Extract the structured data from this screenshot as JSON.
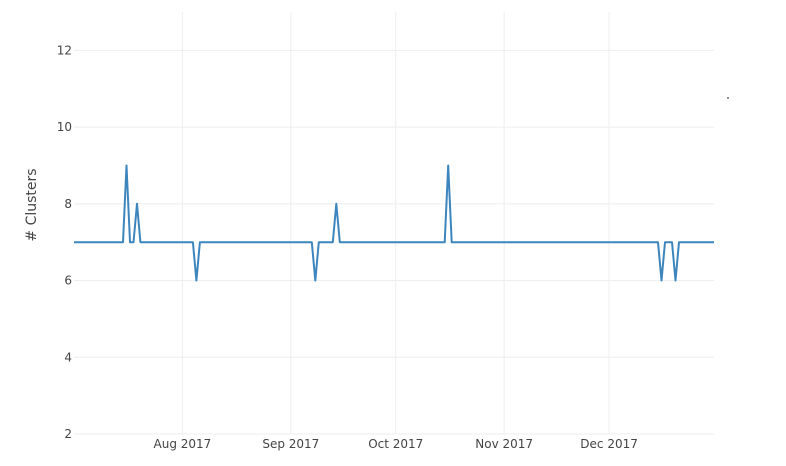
{
  "chart_data": {
    "type": "line",
    "title": "",
    "xlabel": "",
    "ylabel": "# Clusters",
    "xlim": [
      "2017-07-01",
      "2017-12-31"
    ],
    "ylim": [
      2,
      13
    ],
    "grid": true,
    "legend": "none",
    "x_ticks": [
      {
        "date": "2017-08-01",
        "label": "Aug 2017"
      },
      {
        "date": "2017-09-01",
        "label": "Sep 2017"
      },
      {
        "date": "2017-10-01",
        "label": "Oct 2017"
      },
      {
        "date": "2017-11-01",
        "label": "Nov 2017"
      },
      {
        "date": "2017-12-01",
        "label": "Dec 2017"
      }
    ],
    "y_ticks": [
      2,
      4,
      6,
      8,
      10,
      12
    ],
    "series": [
      {
        "color": "#3d86bd",
        "points": [
          {
            "x": "2017-07-01",
            "y": 7
          },
          {
            "x": "2017-07-15",
            "y": 7
          },
          {
            "x": "2017-07-16",
            "y": 9
          },
          {
            "x": "2017-07-17",
            "y": 7
          },
          {
            "x": "2017-07-18",
            "y": 7
          },
          {
            "x": "2017-07-19",
            "y": 8
          },
          {
            "x": "2017-07-20",
            "y": 7
          },
          {
            "x": "2017-08-04",
            "y": 7
          },
          {
            "x": "2017-08-05",
            "y": 6
          },
          {
            "x": "2017-08-06",
            "y": 7
          },
          {
            "x": "2017-09-07",
            "y": 7
          },
          {
            "x": "2017-09-08",
            "y": 6
          },
          {
            "x": "2017-09-09",
            "y": 7
          },
          {
            "x": "2017-09-13",
            "y": 7
          },
          {
            "x": "2017-09-14",
            "y": 8
          },
          {
            "x": "2017-09-15",
            "y": 7
          },
          {
            "x": "2017-10-15",
            "y": 7
          },
          {
            "x": "2017-10-16",
            "y": 9
          },
          {
            "x": "2017-10-17",
            "y": 7
          },
          {
            "x": "2017-12-15",
            "y": 7
          },
          {
            "x": "2017-12-16",
            "y": 6
          },
          {
            "x": "2017-12-17",
            "y": 7
          },
          {
            "x": "2017-12-19",
            "y": 7
          },
          {
            "x": "2017-12-20",
            "y": 6
          },
          {
            "x": "2017-12-21",
            "y": 7
          },
          {
            "x": "2017-12-31",
            "y": 7
          }
        ]
      }
    ]
  }
}
